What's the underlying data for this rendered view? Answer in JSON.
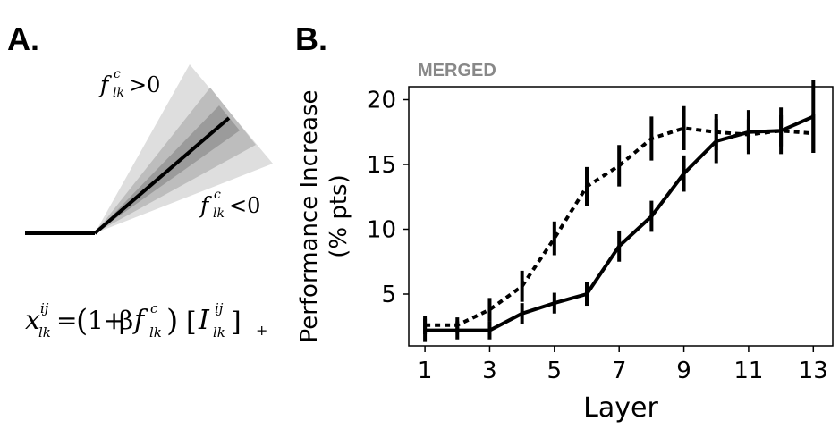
{
  "panels": {
    "a_label": "A.",
    "b_label": "B."
  },
  "panel_a": {
    "upper_label": {
      "sym": "f",
      "sup": "c",
      "sub": "lk",
      "rel": ">0"
    },
    "lower_label": {
      "sym": "f",
      "sup": "c",
      "sub": "lk",
      "rel": "<0"
    },
    "colors": {
      "outer_band": "#dedede",
      "mid_band": "#bdbdbd",
      "inner_band": "#9b9b9b",
      "line": "#000000"
    },
    "equation": {
      "lhs": "x",
      "lhs_sup": "ij",
      "lhs_sub": "lk",
      "eq": "=",
      "open": "(",
      "one_plus": "1+",
      "beta": "β",
      "f": "f",
      "f_sup": "c",
      "f_sub": "lk",
      "close": ")",
      "br_open": "[",
      "I": "I",
      "I_sup": "ij",
      "I_sub": "lk",
      "br_close": "]",
      "plus": "+"
    }
  },
  "chart_data": {
    "type": "line",
    "title": "MERGED",
    "xlabel": "Layer",
    "ylabel_lines": [
      "Performance Increase",
      "(% pts)"
    ],
    "xlim": [
      0.5,
      13.6
    ],
    "ylim": [
      1.0,
      21.0
    ],
    "xticks": [
      1,
      3,
      5,
      7,
      9,
      11,
      13
    ],
    "yticks": [
      5,
      10,
      15,
      20
    ],
    "x": [
      1,
      2,
      3,
      4,
      5,
      6,
      7,
      8,
      9,
      10,
      11,
      12,
      13
    ],
    "series": [
      {
        "style": "solid",
        "values": [
          2.2,
          2.2,
          2.2,
          3.5,
          4.3,
          5.0,
          8.7,
          11.0,
          14.3,
          16.8,
          17.5,
          17.6,
          18.7
        ],
        "err": [
          0.9,
          0.7,
          0.7,
          0.8,
          0.8,
          0.9,
          1.2,
          1.2,
          1.4,
          1.7,
          1.7,
          1.8,
          2.8
        ]
      },
      {
        "style": "dotted",
        "values": [
          2.6,
          2.6,
          3.8,
          5.6,
          9.3,
          13.3,
          14.9,
          17.0,
          17.8,
          17.5,
          17.3,
          17.6,
          17.4
        ],
        "err": [
          0.7,
          0.6,
          0.9,
          1.2,
          1.3,
          1.5,
          1.6,
          1.7,
          1.7,
          1.4,
          1.2,
          1.2,
          1.5
        ]
      }
    ],
    "grid": false,
    "legend": "none"
  }
}
